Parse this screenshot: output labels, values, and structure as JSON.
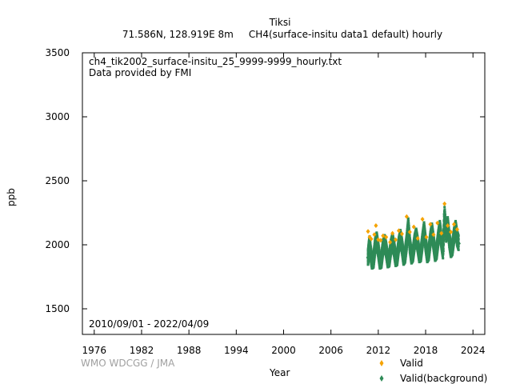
{
  "header": {
    "station": "Tiksi",
    "subtitle": "71.586N, 128.919E 8m     CH4(surface-insitu data1 default) hourly"
  },
  "annotations": {
    "filename": "ch4_tik2002_surface-insitu_25_9999-9999_hourly.txt",
    "provider": "Data provided by FMI",
    "period": "2010/09/01 - 2022/04/09"
  },
  "credit": "WMO WDCGG / JMA",
  "colors": {
    "valid": "#f5a300",
    "background": "#2e8b57",
    "axis": "#000000"
  },
  "chart_data": {
    "type": "scatter",
    "xlabel": "Year",
    "ylabel": "ppb",
    "xlim": [
      1974.5,
      2025.5
    ],
    "ylim": [
      1300,
      3500
    ],
    "xticks": [
      1976,
      1982,
      1988,
      1994,
      2000,
      2006,
      2012,
      2018,
      2024
    ],
    "yticks": [
      1500,
      2000,
      2500,
      3000,
      3500
    ],
    "legend_position": "bottom-right",
    "series": [
      {
        "name": "Valid",
        "color": "#f5a300",
        "points": [
          [
            2010.7,
            2105
          ],
          [
            2010.9,
            2060
          ],
          [
            2011.1,
            2045
          ],
          [
            2011.5,
            2080
          ],
          [
            2011.7,
            2150
          ],
          [
            2012.0,
            2040
          ],
          [
            2012.3,
            2035
          ],
          [
            2012.6,
            2070
          ],
          [
            2013.0,
            2060
          ],
          [
            2013.5,
            2020
          ],
          [
            2013.8,
            2090
          ],
          [
            2014.2,
            2040
          ],
          [
            2014.6,
            2110
          ],
          [
            2015.0,
            2085
          ],
          [
            2015.6,
            2220
          ],
          [
            2016.0,
            2100
          ],
          [
            2016.5,
            2140
          ],
          [
            2017.0,
            2050
          ],
          [
            2017.6,
            2200
          ],
          [
            2018.1,
            2060
          ],
          [
            2018.6,
            2160
          ],
          [
            2019.0,
            2080
          ],
          [
            2019.5,
            2170
          ],
          [
            2020.0,
            2090
          ],
          [
            2020.4,
            2320
          ],
          [
            2020.8,
            2150
          ],
          [
            2021.2,
            2100
          ],
          [
            2021.6,
            2160
          ],
          [
            2022.0,
            2120
          ]
        ]
      },
      {
        "name": "Valid(background)",
        "color": "#2e8b57",
        "points": [
          [
            2010.7,
            1900
          ],
          [
            2010.8,
            1960
          ],
          [
            2010.9,
            2010
          ],
          [
            2011.0,
            1950
          ],
          [
            2011.2,
            1870
          ],
          [
            2011.4,
            1880
          ],
          [
            2011.6,
            1990
          ],
          [
            2011.8,
            2040
          ],
          [
            2012.0,
            1960
          ],
          [
            2012.2,
            1870
          ],
          [
            2012.4,
            1880
          ],
          [
            2012.6,
            1980
          ],
          [
            2012.8,
            2020
          ],
          [
            2013.0,
            1960
          ],
          [
            2013.2,
            1880
          ],
          [
            2013.4,
            1890
          ],
          [
            2013.6,
            1980
          ],
          [
            2013.8,
            2030
          ],
          [
            2014.0,
            1970
          ],
          [
            2014.2,
            1890
          ],
          [
            2014.4,
            1900
          ],
          [
            2014.6,
            2000
          ],
          [
            2014.8,
            2060
          ],
          [
            2015.0,
            1990
          ],
          [
            2015.2,
            1900
          ],
          [
            2015.4,
            1920
          ],
          [
            2015.6,
            2020
          ],
          [
            2015.8,
            2150
          ],
          [
            2016.0,
            2000
          ],
          [
            2016.2,
            1910
          ],
          [
            2016.4,
            1930
          ],
          [
            2016.6,
            2020
          ],
          [
            2016.8,
            2070
          ],
          [
            2017.0,
            2000
          ],
          [
            2017.2,
            1920
          ],
          [
            2017.4,
            1930
          ],
          [
            2017.6,
            2030
          ],
          [
            2017.8,
            2120
          ],
          [
            2018.0,
            2010
          ],
          [
            2018.2,
            1920
          ],
          [
            2018.4,
            1940
          ],
          [
            2018.6,
            2040
          ],
          [
            2018.8,
            2110
          ],
          [
            2019.0,
            2020
          ],
          [
            2019.2,
            1930
          ],
          [
            2019.4,
            1950
          ],
          [
            2019.6,
            2050
          ],
          [
            2019.8,
            2130
          ],
          [
            2020.0,
            2030
          ],
          [
            2020.2,
            1950
          ],
          [
            2020.4,
            2240
          ],
          [
            2020.6,
            2080
          ],
          [
            2020.8,
            2160
          ],
          [
            2021.0,
            2040
          ],
          [
            2021.2,
            1960
          ],
          [
            2021.4,
            1980
          ],
          [
            2021.6,
            2070
          ],
          [
            2021.8,
            2130
          ],
          [
            2022.0,
            2050
          ],
          [
            2022.2,
            2010
          ]
        ]
      }
    ]
  }
}
